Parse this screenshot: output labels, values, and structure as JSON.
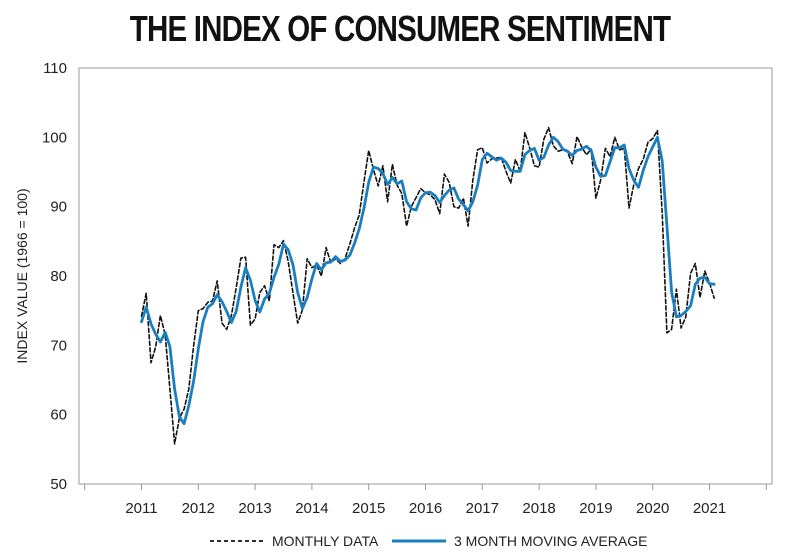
{
  "chart_data": {
    "type": "line",
    "title": "THE INDEX OF CONSUMER SENTIMENT",
    "xlabel": "",
    "ylabel": "INDEX VALUE (1966 = 100)",
    "ylim": [
      50,
      110
    ],
    "xlim": [
      2009.9,
      2022.1
    ],
    "yticks": [
      50,
      60,
      70,
      80,
      90,
      100,
      110
    ],
    "xticks": [
      "2011",
      "2012",
      "2013",
      "2014",
      "2015",
      "2016",
      "2017",
      "2018",
      "2019",
      "2020",
      "2021"
    ],
    "grid": false,
    "legend_position": "bottom",
    "series": [
      {
        "name": "MONTHLY DATA",
        "color": "#111111",
        "style": "dashed",
        "x": [
          2011.0,
          2011.083,
          2011.167,
          2011.25,
          2011.333,
          2011.417,
          2011.5,
          2011.583,
          2011.667,
          2011.75,
          2011.833,
          2011.917,
          2012.0,
          2012.083,
          2012.167,
          2012.25,
          2012.333,
          2012.417,
          2012.5,
          2012.583,
          2012.667,
          2012.75,
          2012.833,
          2012.917,
          2013.0,
          2013.083,
          2013.167,
          2013.25,
          2013.333,
          2013.417,
          2013.5,
          2013.583,
          2013.667,
          2013.75,
          2013.833,
          2013.917,
          2014.0,
          2014.083,
          2014.167,
          2014.25,
          2014.333,
          2014.417,
          2014.5,
          2014.583,
          2014.667,
          2014.75,
          2014.833,
          2014.917,
          2015.0,
          2015.083,
          2015.167,
          2015.25,
          2015.333,
          2015.417,
          2015.5,
          2015.583,
          2015.667,
          2015.75,
          2015.833,
          2015.917,
          2016.0,
          2016.083,
          2016.167,
          2016.25,
          2016.333,
          2016.417,
          2016.5,
          2016.583,
          2016.667,
          2016.75,
          2016.833,
          2016.917,
          2017.0,
          2017.083,
          2017.167,
          2017.25,
          2017.333,
          2017.417,
          2017.5,
          2017.583,
          2017.667,
          2017.75,
          2017.833,
          2017.917,
          2018.0,
          2018.083,
          2018.167,
          2018.25,
          2018.333,
          2018.417,
          2018.5,
          2018.583,
          2018.667,
          2018.75,
          2018.833,
          2018.917,
          2019.0,
          2019.083,
          2019.167,
          2019.25,
          2019.333,
          2019.417,
          2019.5,
          2019.583,
          2019.667,
          2019.75,
          2019.833,
          2019.917,
          2020.0,
          2020.083,
          2020.167,
          2020.25,
          2020.333,
          2020.417,
          2020.5,
          2020.583,
          2020.667,
          2020.75,
          2020.833,
          2020.917,
          2021.0,
          2021.083
        ],
        "values": [
          74.2,
          77.5,
          67.5,
          69.8,
          74.3,
          71.5,
          63.7,
          55.8,
          59.5,
          60.8,
          63.7,
          69.9,
          75.0,
          75.3,
          76.2,
          76.4,
          79.3,
          73.2,
          72.3,
          74.3,
          78.3,
          82.6,
          82.7,
          72.9,
          73.8,
          77.6,
          78.6,
          76.4,
          84.5,
          84.1,
          85.1,
          82.1,
          77.5,
          73.2,
          75.1,
          82.5,
          81.2,
          81.6,
          80.0,
          84.1,
          81.9,
          82.5,
          81.8,
          82.5,
          84.6,
          86.9,
          88.8,
          93.6,
          98.1,
          95.4,
          93.0,
          95.9,
          90.7,
          96.1,
          93.1,
          91.9,
          87.2,
          90.0,
          91.3,
          92.6,
          92.0,
          91.7,
          91.0,
          89.0,
          94.7,
          93.5,
          90.0,
          89.8,
          91.2,
          87.2,
          93.8,
          98.2,
          98.5,
          96.3,
          96.9,
          97.0,
          97.1,
          95.1,
          93.4,
          96.8,
          95.1,
          100.7,
          98.5,
          95.9,
          95.7,
          99.7,
          101.4,
          98.8,
          98.0,
          98.2,
          97.9,
          96.2,
          100.1,
          98.6,
          97.5,
          98.3,
          91.2,
          93.8,
          98.4,
          97.2,
          100.0,
          98.2,
          98.4,
          89.8,
          93.2,
          95.5,
          96.8,
          99.3,
          99.8,
          101.0,
          89.1,
          71.8,
          72.3,
          78.1,
          72.5,
          74.1,
          80.4,
          81.8,
          76.9,
          80.7,
          79.0,
          76.8
        ]
      },
      {
        "name": "3 MONTH MOVING AVERAGE",
        "color": "#1a7fc1",
        "style": "solid",
        "x": [
          2011.0,
          2011.083,
          2011.167,
          2011.25,
          2011.333,
          2011.417,
          2011.5,
          2011.583,
          2011.667,
          2011.75,
          2011.833,
          2011.917,
          2012.0,
          2012.083,
          2012.167,
          2012.25,
          2012.333,
          2012.417,
          2012.5,
          2012.583,
          2012.667,
          2012.75,
          2012.833,
          2012.917,
          2013.0,
          2013.083,
          2013.167,
          2013.25,
          2013.333,
          2013.417,
          2013.5,
          2013.583,
          2013.667,
          2013.75,
          2013.833,
          2013.917,
          2014.0,
          2014.083,
          2014.167,
          2014.25,
          2014.333,
          2014.417,
          2014.5,
          2014.583,
          2014.667,
          2014.75,
          2014.833,
          2014.917,
          2015.0,
          2015.083,
          2015.167,
          2015.25,
          2015.333,
          2015.417,
          2015.5,
          2015.583,
          2015.667,
          2015.75,
          2015.833,
          2015.917,
          2016.0,
          2016.083,
          2016.167,
          2016.25,
          2016.333,
          2016.417,
          2016.5,
          2016.583,
          2016.667,
          2016.75,
          2016.833,
          2016.917,
          2017.0,
          2017.083,
          2017.167,
          2017.25,
          2017.333,
          2017.417,
          2017.5,
          2017.583,
          2017.667,
          2017.75,
          2017.833,
          2017.917,
          2018.0,
          2018.083,
          2018.167,
          2018.25,
          2018.333,
          2018.417,
          2018.5,
          2018.583,
          2018.667,
          2018.75,
          2018.833,
          2018.917,
          2019.0,
          2019.083,
          2019.167,
          2019.25,
          2019.333,
          2019.417,
          2019.5,
          2019.583,
          2019.667,
          2019.75,
          2019.833,
          2019.917,
          2020.0,
          2020.083,
          2020.167,
          2020.25,
          2020.333,
          2020.417,
          2020.5,
          2020.583,
          2020.667,
          2020.75,
          2020.833,
          2020.917,
          2021.0,
          2021.083
        ],
        "values": [
          73.4,
          75.5,
          73.1,
          71.6,
          70.5,
          71.9,
          69.8,
          63.7,
          59.7,
          58.7,
          61.3,
          64.8,
          69.5,
          73.4,
          75.5,
          76.0,
          77.3,
          76.3,
          74.9,
          73.3,
          74.9,
          78.4,
          81.2,
          79.4,
          76.5,
          74.8,
          76.7,
          77.5,
          79.8,
          81.7,
          84.6,
          83.8,
          81.6,
          77.6,
          75.3,
          76.9,
          79.6,
          81.8,
          80.9,
          81.9,
          82.0,
          82.8,
          82.1,
          82.3,
          83.0,
          84.7,
          86.8,
          89.8,
          93.5,
          95.7,
          95.5,
          94.8,
          93.2,
          94.2,
          93.3,
          93.7,
          90.7,
          89.7,
          89.5,
          91.3,
          92.0,
          92.1,
          91.6,
          90.6,
          91.6,
          92.4,
          92.7,
          91.1,
          90.3,
          89.4,
          90.7,
          93.1,
          96.8,
          97.7,
          97.2,
          96.7,
          97.0,
          96.4,
          95.2,
          95.1,
          95.1,
          97.5,
          98.1,
          98.4,
          96.7,
          97.1,
          98.9,
          100.0,
          99.4,
          98.3,
          98.0,
          97.4,
          98.1,
          98.3,
          98.7,
          98.1,
          95.7,
          94.4,
          94.5,
          96.5,
          98.5,
          98.5,
          98.9,
          95.5,
          93.8,
          92.8,
          95.2,
          97.2,
          98.6,
          100.0,
          96.6,
          87.3,
          77.7,
          74.1,
          74.3,
          74.9,
          75.7,
          78.8,
          79.7,
          79.8,
          78.9,
          78.8
        ]
      }
    ]
  }
}
